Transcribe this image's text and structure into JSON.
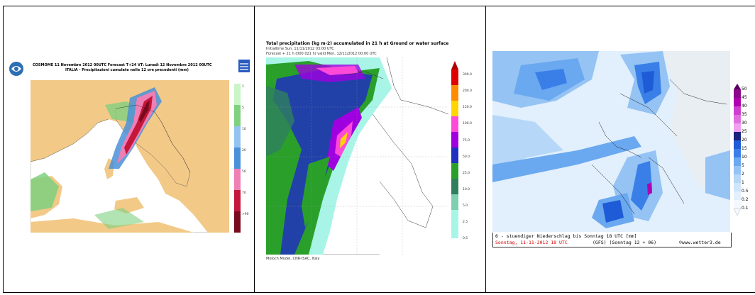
{
  "panel1": {
    "title_line1": "COSMOME 11 Novembre 2012 00UTC Forecast T+24 VT: Lunedì 12 Novembre 2012 00UTC",
    "title_line2": "ITALIA - Precipitazioni cumulate nelle 12 ore precedenti (mm)",
    "legend_labels": [
      "1",
      "5",
      "10",
      "20",
      "50",
      "70",
      ">90"
    ],
    "colors": {
      "land": "#f2c987",
      "sea": "#ffffff",
      "green": "#7fd07f",
      "blue": "#4a90d9",
      "pink": "#ef7fb5",
      "red": "#c4173b",
      "darkred": "#7a0b1c"
    }
  },
  "panel2": {
    "title": "Total precipitation (kg m-2) accumulated in  21 h at Ground or water surface",
    "sub1": "Initialtime  Sun, 11/11/2012  03:00 UTC",
    "sub2": "Forecast + 21 h (000 021 h) valid Mon, 12/11/2012 00:00 UTC",
    "footer": "Moloch Model, CNR-ISAC, Italy",
    "scale_labels": [
      "300.0",
      "200.0",
      "150.0",
      "100.0",
      "75.0",
      "50.0",
      "25.0",
      "10.0",
      "5.0",
      "2.5",
      "0.5"
    ],
    "scale_colors": [
      "#b00000",
      "#e00000",
      "#ff8c00",
      "#ffd400",
      "#ff4ad8",
      "#a000e0",
      "#2030c0",
      "#2aa02a",
      "#2f7f5f",
      "#7fcfb0",
      "#a8f5e8"
    ]
  },
  "panel3": {
    "scale_labels": [
      "50",
      "45",
      "40",
      "35",
      "30",
      "25",
      "20",
      "15",
      "10",
      "5",
      "2",
      "1",
      "0.5",
      "0.2",
      "0.1"
    ],
    "scale_colors": [
      "#5a0060",
      "#8b0a8b",
      "#b000b0",
      "#d040d0",
      "#e070e0",
      "#f0a0f0",
      "#1a237e",
      "#1e5bd6",
      "#3a7fe8",
      "#6aa8f0",
      "#94c3f4",
      "#b6d7f7",
      "#cfe5fa",
      "#e2effc",
      "#f3f8fe"
    ],
    "caption_line1": "6 - stuendiger Niederschlag bis Sonntag 18 UTC [mm]",
    "caption_date": "Sonntag, 11-11-2012   18 UTC",
    "caption_model": "(GFS)  (Sonntag 12 + 06)",
    "caption_site": "©www.wetter3.de"
  }
}
